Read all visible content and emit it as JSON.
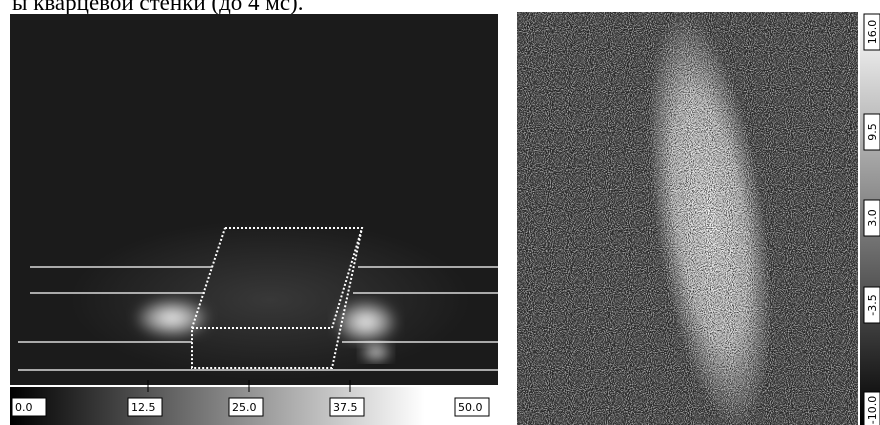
{
  "caption": "ы кварцевой стенки (до 4 мс).",
  "left_figure": {
    "colorbar_labels": [
      "0.0",
      "12.5",
      "25.0",
      "37.5",
      "50.0"
    ]
  },
  "right_figure": {
    "colorbar_labels": [
      "16.0",
      "9.5",
      "3.0",
      "-3.5",
      "-10.0"
    ]
  }
}
